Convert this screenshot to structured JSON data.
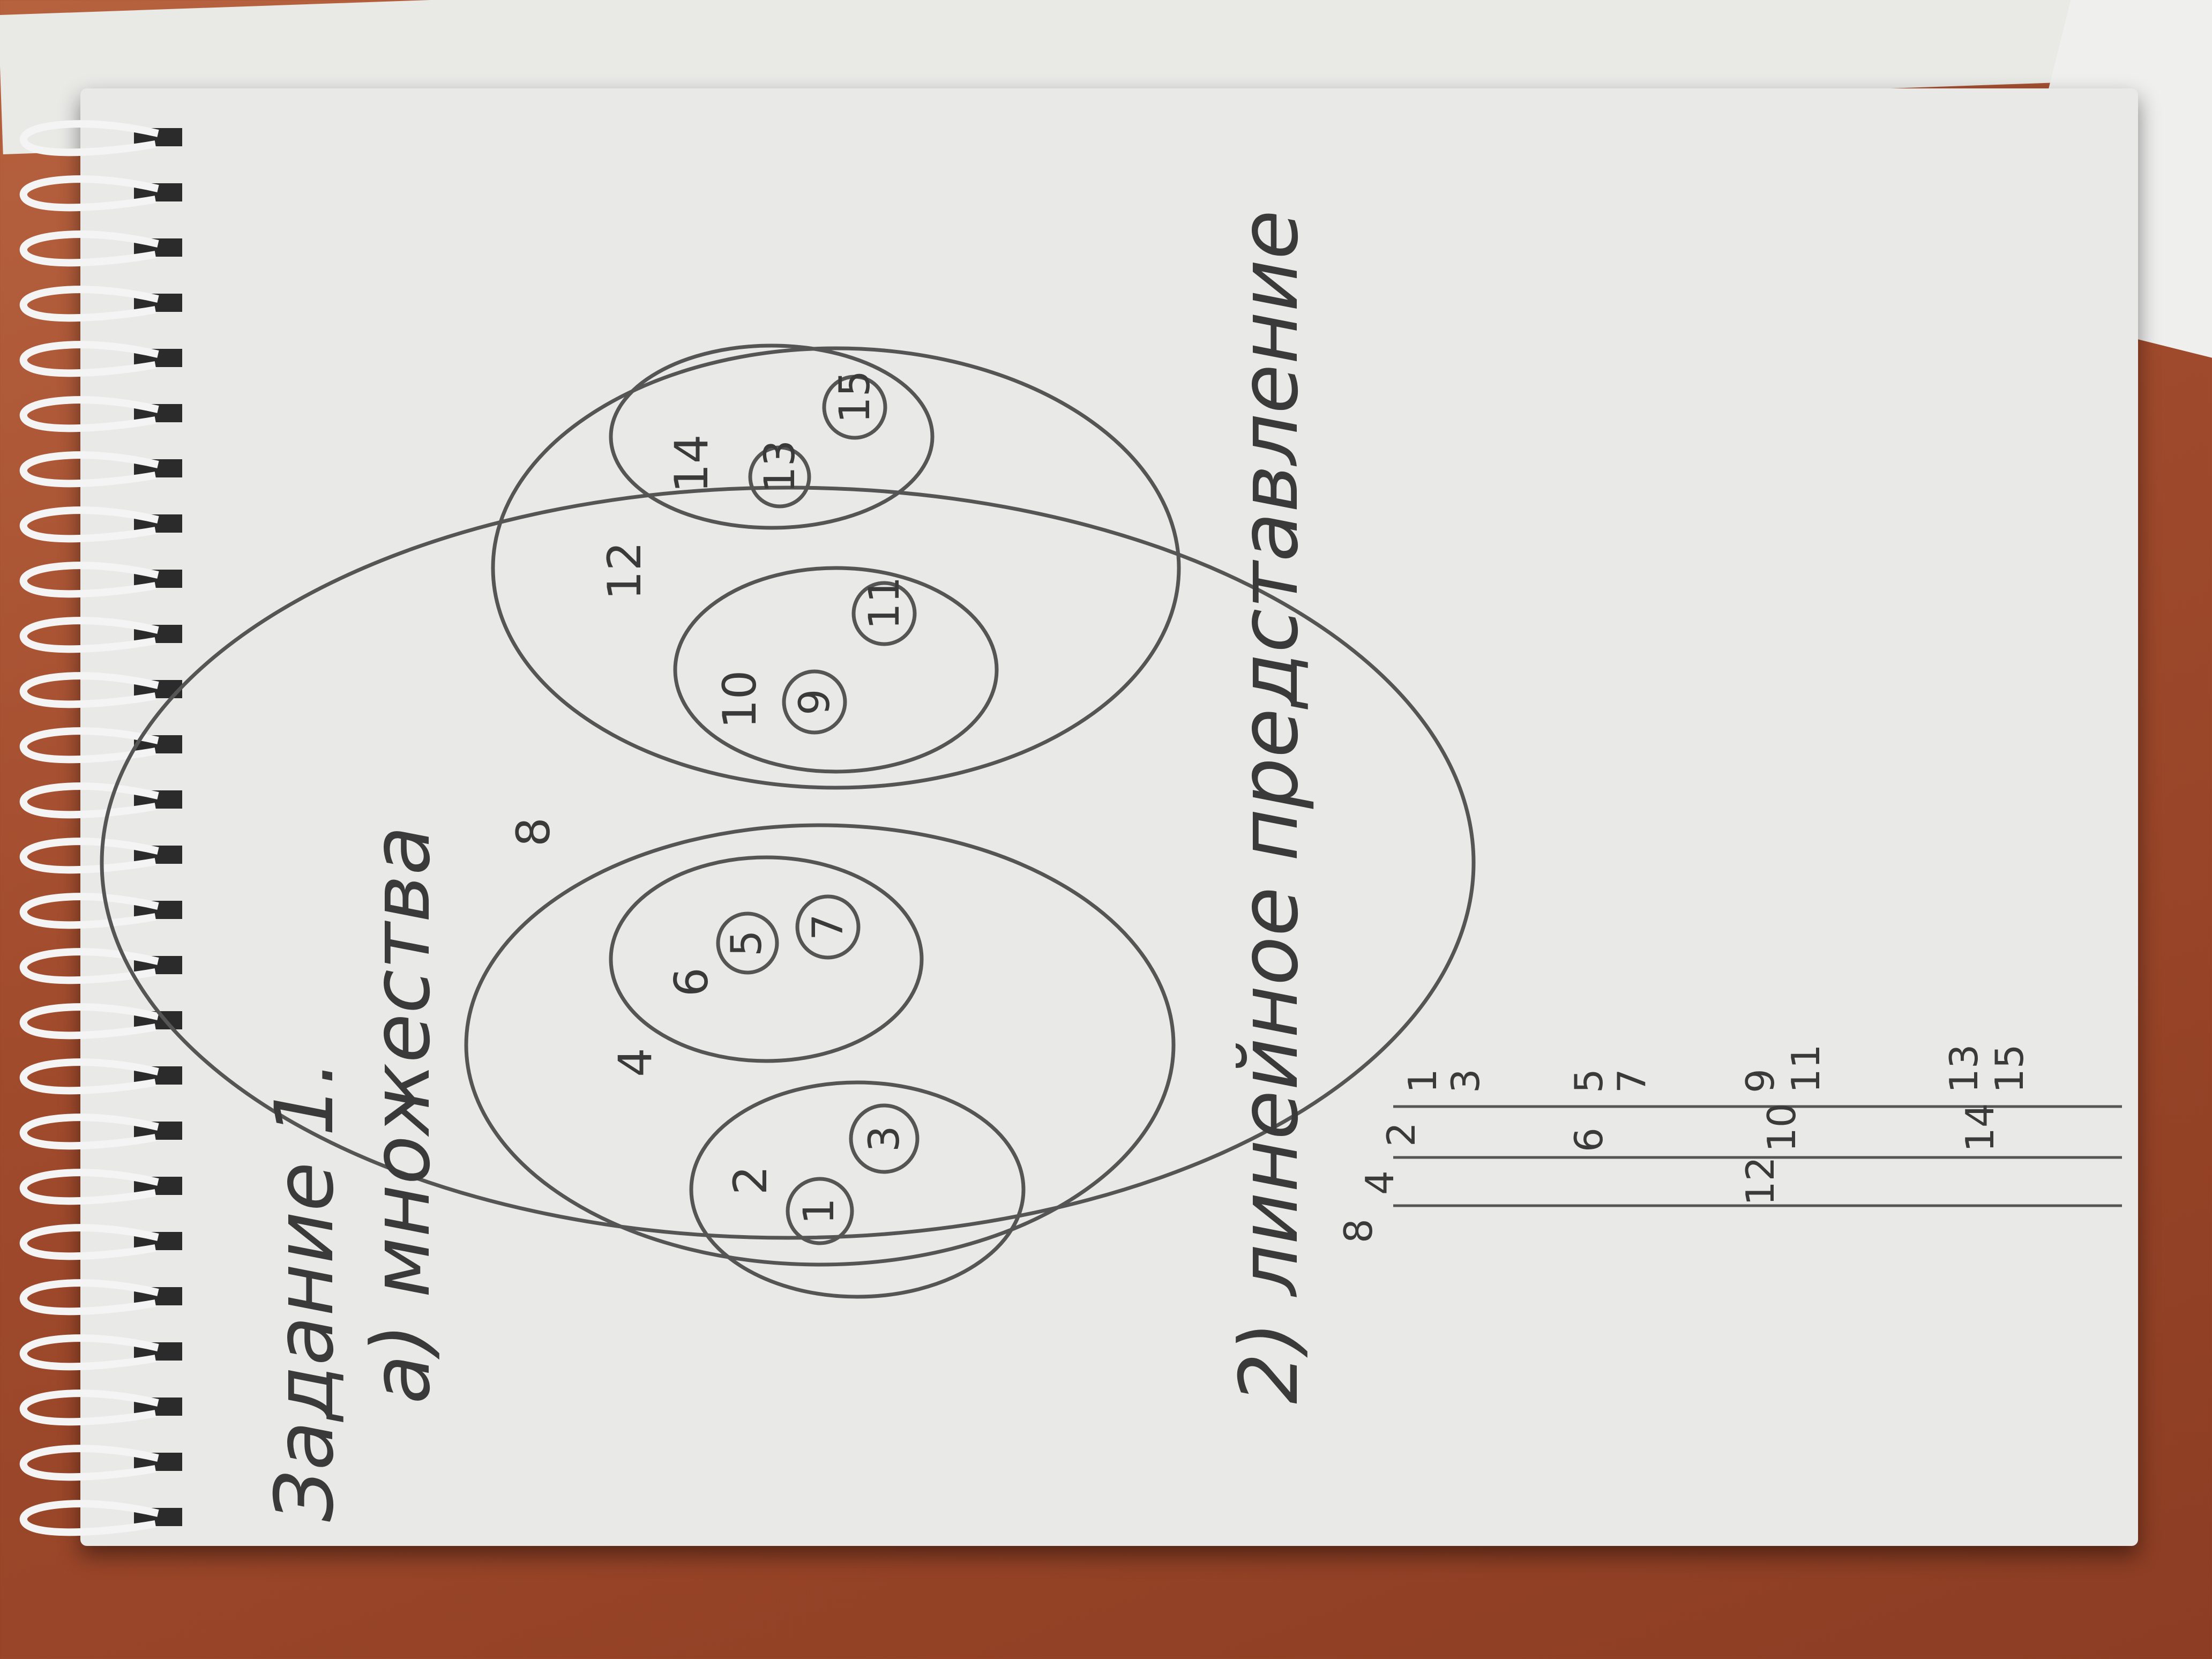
{
  "heading": {
    "title": "Задание 1.",
    "item_a": "а) множества",
    "item_b": "2) линейное представление"
  },
  "venn": {
    "outer_label": "8",
    "left_label": "4",
    "right_label": "12",
    "group_ll_label": "2",
    "group_ll_elements": [
      "1",
      "3"
    ],
    "group_lr_label": "6",
    "group_lr_elements": [
      "5",
      "7"
    ],
    "group_rl_label": "10",
    "group_rl_elements": [
      "9",
      "11"
    ],
    "group_rr_label": "14",
    "group_rr_elements": [
      "13",
      "15"
    ]
  },
  "linear": {
    "col8": [
      "8"
    ],
    "col4": [
      "4",
      "12"
    ],
    "col2": [
      "2",
      "6",
      "10",
      "14"
    ],
    "col1": [
      "1",
      "3",
      "5",
      "7",
      "9",
      "11",
      "13",
      "15"
    ]
  },
  "colors": {
    "paper": "#e9e9e7",
    "pencil": "#3a3a3a",
    "desk": "#a04a2c"
  }
}
